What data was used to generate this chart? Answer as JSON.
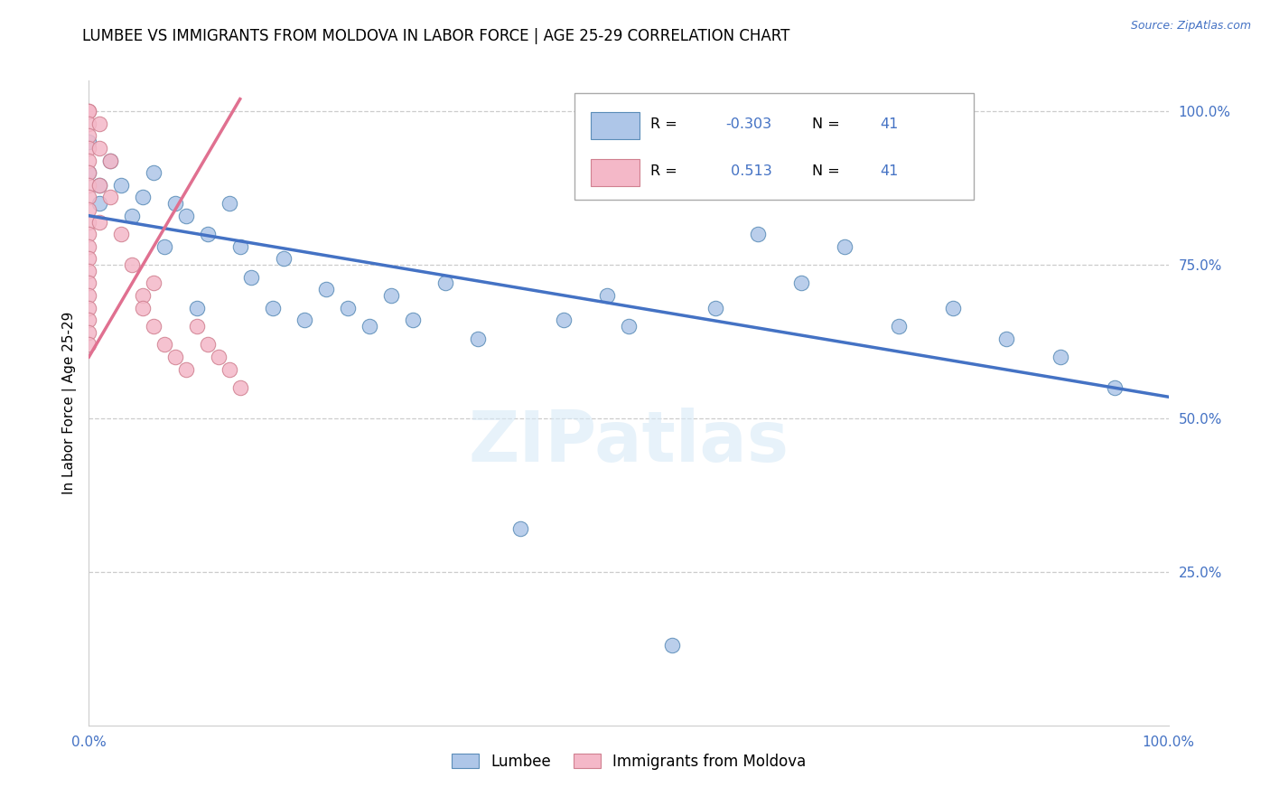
{
  "title": "LUMBEE VS IMMIGRANTS FROM MOLDOVA IN LABOR FORCE | AGE 25-29 CORRELATION CHART",
  "source": "Source: ZipAtlas.com",
  "ylabel": "In Labor Force | Age 25-29",
  "xlim": [
    0.0,
    1.0
  ],
  "ylim": [
    0.0,
    1.05
  ],
  "x_tick_labels": [
    "0.0%",
    "100.0%"
  ],
  "y_tick_labels_right": [
    "25.0%",
    "50.0%",
    "75.0%",
    "100.0%"
  ],
  "lumbee_color": "#aec6e8",
  "lumbee_edge_color": "#5b8db8",
  "moldova_color": "#f4b8c8",
  "moldova_edge_color": "#d08090",
  "trend_line_color_lumbee": "#4472c4",
  "trend_line_color_moldova": "#e07090",
  "watermark": "ZIPatlas",
  "lumbee_x": [
    0.0,
    0.0,
    0.01,
    0.01,
    0.02,
    0.03,
    0.04,
    0.05,
    0.06,
    0.07,
    0.08,
    0.09,
    0.1,
    0.11,
    0.13,
    0.14,
    0.15,
    0.17,
    0.18,
    0.2,
    0.22,
    0.24,
    0.26,
    0.28,
    0.3,
    0.33,
    0.36,
    0.4,
    0.44,
    0.48,
    0.5,
    0.54,
    0.58,
    0.62,
    0.66,
    0.7,
    0.75,
    0.8,
    0.85,
    0.9,
    0.95
  ],
  "lumbee_y": [
    0.95,
    0.9,
    0.88,
    0.85,
    0.92,
    0.88,
    0.83,
    0.86,
    0.9,
    0.78,
    0.85,
    0.83,
    0.68,
    0.8,
    0.85,
    0.78,
    0.73,
    0.68,
    0.76,
    0.66,
    0.71,
    0.68,
    0.65,
    0.7,
    0.66,
    0.72,
    0.63,
    0.32,
    0.66,
    0.7,
    0.65,
    0.13,
    0.68,
    0.8,
    0.72,
    0.78,
    0.65,
    0.68,
    0.63,
    0.6,
    0.55
  ],
  "moldova_x": [
    0.0,
    0.0,
    0.0,
    0.0,
    0.0,
    0.0,
    0.0,
    0.0,
    0.0,
    0.0,
    0.0,
    0.0,
    0.0,
    0.0,
    0.0,
    0.0,
    0.0,
    0.0,
    0.0,
    0.0,
    0.0,
    0.01,
    0.01,
    0.01,
    0.01,
    0.02,
    0.02,
    0.03,
    0.04,
    0.05,
    0.06,
    0.07,
    0.08,
    0.09,
    0.1,
    0.11,
    0.12,
    0.13,
    0.14,
    0.05,
    0.06
  ],
  "moldova_y": [
    1.0,
    1.0,
    0.98,
    0.96,
    0.94,
    0.92,
    0.9,
    0.88,
    0.86,
    0.84,
    0.82,
    0.8,
    0.78,
    0.76,
    0.74,
    0.72,
    0.7,
    0.68,
    0.66,
    0.64,
    0.62,
    0.98,
    0.94,
    0.88,
    0.82,
    0.92,
    0.86,
    0.8,
    0.75,
    0.7,
    0.65,
    0.62,
    0.6,
    0.58,
    0.65,
    0.62,
    0.6,
    0.58,
    0.55,
    0.68,
    0.72
  ],
  "background_color": "#ffffff",
  "grid_color": "#cccccc",
  "title_fontsize": 12,
  "axis_label_fontsize": 11,
  "tick_fontsize": 11,
  "legend_fontsize": 12,
  "trend_lumbee_x0": 0.0,
  "trend_lumbee_y0": 0.83,
  "trend_lumbee_x1": 1.0,
  "trend_lumbee_y1": 0.535,
  "trend_moldova_x0": 0.0,
  "trend_moldova_y0": 0.6,
  "trend_moldova_x1": 0.14,
  "trend_moldova_y1": 1.02
}
